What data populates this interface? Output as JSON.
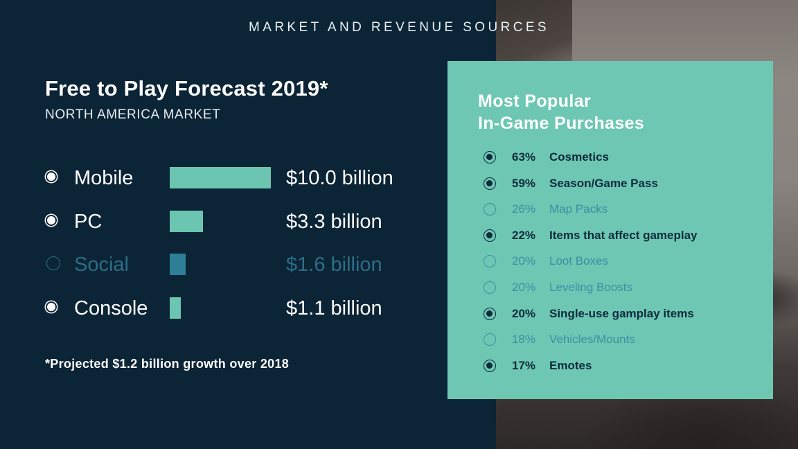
{
  "header": {
    "title": "MARKET AND REVENUE SOURCES"
  },
  "forecast": {
    "title": "Free to Play Forecast 2019*",
    "subtitle": "NORTH AMERICA MARKET",
    "footnote": "*Projected $1.2 billion growth over 2018"
  },
  "purchases": {
    "title_line1": "Most Popular",
    "title_line2": "In-Game Purchases"
  },
  "colors": {
    "background": "#0b2436",
    "accent": "#6bc5b0",
    "muted": "#2d6e86",
    "panel": "#6dc7b3",
    "panel_text": "#0d2a3b"
  },
  "chart_data": [
    {
      "type": "bar",
      "orientation": "horizontal",
      "title": "Free to Play Forecast 2019*",
      "subtitle": "NORTH AMERICA MARKET",
      "unit": "billion USD",
      "categories": [
        "Mobile",
        "PC",
        "Social",
        "Console"
      ],
      "values": [
        10.0,
        3.3,
        1.6,
        1.1
      ],
      "value_labels": [
        "$10.0 billion",
        "$3.3 billion",
        "$1.6 billion",
        "$1.1 billion"
      ],
      "highlighted": [
        true,
        true,
        false,
        true
      ],
      "xlim": [
        0,
        10.0
      ],
      "grid": false
    },
    {
      "type": "table",
      "title": "Most Popular In-Game Purchases",
      "rows": [
        {
          "pct": 63,
          "pct_label": "63%",
          "label": "Cosmetics",
          "highlighted": true
        },
        {
          "pct": 59,
          "pct_label": "59%",
          "label": "Season/Game Pass",
          "highlighted": true
        },
        {
          "pct": 26,
          "pct_label": "26%",
          "label": "Map Packs",
          "highlighted": false
        },
        {
          "pct": 22,
          "pct_label": "22%",
          "label": "Items that affect gameplay",
          "highlighted": true
        },
        {
          "pct": 20,
          "pct_label": "20%",
          "label": "Loot Boxes",
          "highlighted": false
        },
        {
          "pct": 20,
          "pct_label": "20%",
          "label": "Leveling Boosts",
          "highlighted": false
        },
        {
          "pct": 20,
          "pct_label": "20%",
          "label": "Single-use gamplay items",
          "highlighted": true
        },
        {
          "pct": 18,
          "pct_label": "18%",
          "label": "Vehicles/Mounts",
          "highlighted": false
        },
        {
          "pct": 17,
          "pct_label": "17%",
          "label": "Emotes",
          "highlighted": true
        }
      ]
    }
  ]
}
